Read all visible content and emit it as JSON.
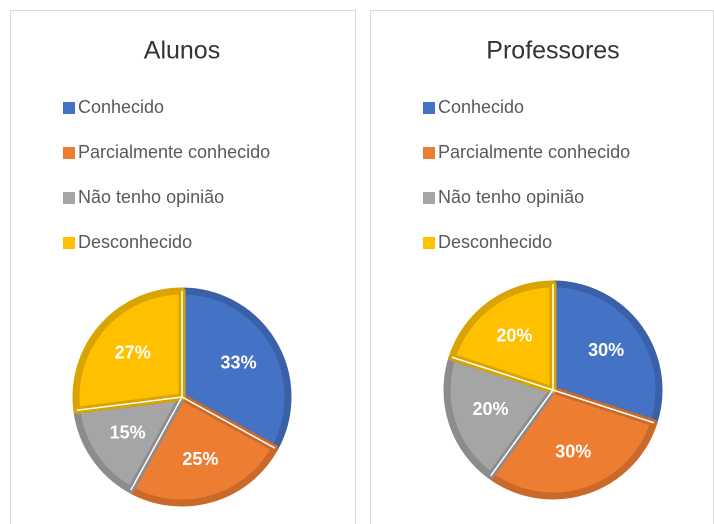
{
  "chart_data": [
    {
      "type": "pie",
      "title": "Alunos",
      "categories": [
        "Conhecido",
        "Parcialmente conhecido",
        "Não tenho opinião",
        "Desconhecido"
      ],
      "values": [
        33,
        25,
        15,
        27
      ],
      "value_labels": [
        "33%",
        "25%",
        "15%",
        "27%"
      ],
      "colors": [
        "#4472c4",
        "#ed7d31",
        "#a5a5a5",
        "#ffc000"
      ],
      "legend": "top"
    },
    {
      "type": "pie",
      "title": "Professores",
      "categories": [
        "Conhecido",
        "Parcialmente conhecido",
        "Não tenho opinião",
        "Desconhecido"
      ],
      "values": [
        30,
        30,
        20,
        20
      ],
      "value_labels": [
        "30%",
        "30%",
        "20%",
        "20%"
      ],
      "colors": [
        "#4472c4",
        "#ed7d31",
        "#a5a5a5",
        "#ffc000"
      ],
      "legend": "top"
    }
  ]
}
